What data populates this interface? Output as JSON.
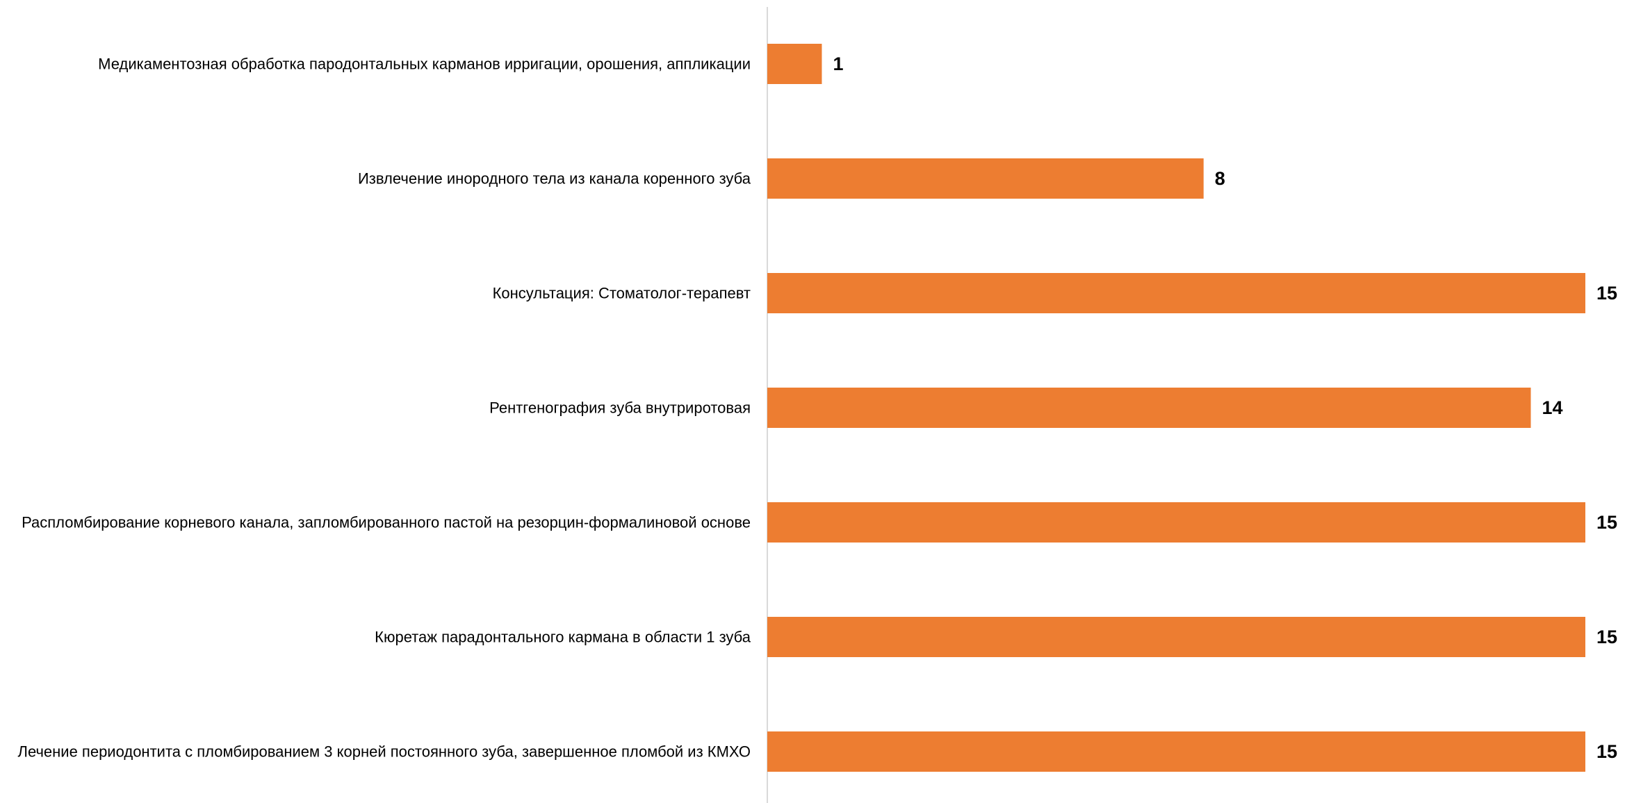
{
  "chart_data": {
    "type": "bar",
    "orientation": "horizontal",
    "categories": [
      "Медикаментозная обработка пародонтальных карманов ирригации, орошения, аппликации",
      "Извлечение инородного тела из канала коренного зуба",
      "Консультация: Стоматолог-терапевт",
      "Рентгенография зуба внутриротовая",
      "Распломбирование корневого канала, запломбированного пастой на резорцин-формалиновой основе",
      "Кюретаж парадонтального кармана в области 1 зуба",
      "Лечение периодонтита с пломбированием 3 корней постоянного зуба, завершенное пломбой из КМХО"
    ],
    "values": [
      1,
      8,
      15,
      14,
      15,
      15,
      15
    ],
    "data_labels": [
      "1",
      "8",
      "15",
      "14",
      "15",
      "15",
      "15"
    ],
    "title": "",
    "xlabel": "",
    "ylabel": "",
    "xlim": [
      0,
      15
    ],
    "grid": false,
    "legend": "none",
    "bar_color": "#ED7D31",
    "axis_color": "#D9D9D9"
  }
}
